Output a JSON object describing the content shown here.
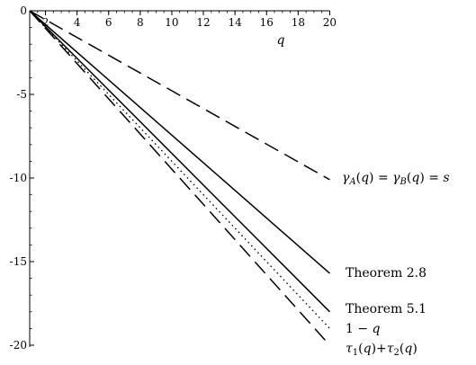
{
  "chart_data": {
    "type": "line",
    "xlabel": "q",
    "ylabel": "",
    "xlim": [
      1,
      20
    ],
    "ylim": [
      -20,
      0
    ],
    "x_ticks": [
      2,
      4,
      6,
      8,
      10,
      12,
      14,
      16,
      18,
      20
    ],
    "y_ticks": [
      0,
      -5,
      -10,
      -15,
      -20
    ],
    "x_tick_labels": [
      "2",
      "4",
      "6",
      "8",
      "10",
      "12",
      "14",
      "16",
      "18",
      "20"
    ],
    "y_tick_labels": [
      "0",
      "-5",
      "-10",
      "-15",
      "-20"
    ],
    "x_minor_step": 0.5,
    "y_minor_step": 1,
    "grid": false,
    "series": [
      {
        "name": "γA(q) = γB(q) = s",
        "style": "longdash",
        "x": [
          1,
          20
        ],
        "y": [
          0,
          -10.1
        ]
      },
      {
        "name": "Theorem 2.8",
        "style": "solid",
        "x": [
          1,
          20
        ],
        "y": [
          0,
          -15.7
        ]
      },
      {
        "name": "Theorem 5.1",
        "style": "solid",
        "x": [
          1,
          20
        ],
        "y": [
          0,
          -18
        ]
      },
      {
        "name": "1 − q",
        "style": "dotted",
        "x": [
          1,
          20
        ],
        "y": [
          0,
          -19
        ]
      },
      {
        "name": "τ1(q) + τ2(q)",
        "style": "longdash",
        "x": [
          1,
          20
        ],
        "y": [
          0,
          -20
        ]
      }
    ]
  }
}
